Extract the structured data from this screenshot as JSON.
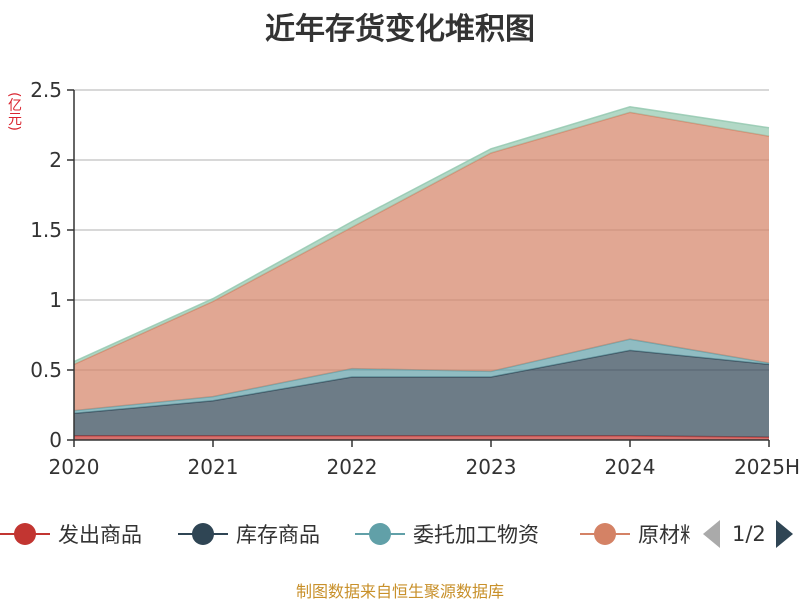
{
  "header": {
    "title": "近年存货变化堆积图",
    "unit": "(亿元)"
  },
  "chart_data": {
    "type": "area",
    "stacked": true,
    "title": "近年存货变化堆积图",
    "ylabel": "(亿元)",
    "xlabel": "",
    "categories": [
      "2020",
      "2021",
      "2022",
      "2023",
      "2024",
      "2025H"
    ],
    "y_ticks": [
      "0",
      "0.5",
      "1",
      "1.5",
      "2",
      "2.5"
    ],
    "ylim": [
      0,
      2.5
    ],
    "grid": true,
    "legend_position": "bottom",
    "series": [
      {
        "name": "发出商品",
        "color": "#c23531",
        "values": [
          0.03,
          0.03,
          0.03,
          0.03,
          0.03,
          0.02
        ]
      },
      {
        "name": "库存商品",
        "color": "#2f4554",
        "values": [
          0.16,
          0.25,
          0.42,
          0.42,
          0.61,
          0.52
        ]
      },
      {
        "name": "委托加工物资",
        "color": "#61a0a8",
        "values": [
          0.02,
          0.03,
          0.06,
          0.04,
          0.08,
          0.01
        ]
      },
      {
        "name": "原材料",
        "color": "#d48265",
        "values": [
          0.33,
          0.68,
          1.01,
          1.56,
          1.62,
          1.62
        ]
      },
      {
        "name": "",
        "color": "#91c7ae",
        "values": [
          0.02,
          0.02,
          0.04,
          0.03,
          0.04,
          0.06
        ]
      }
    ]
  },
  "legend": {
    "items": [
      {
        "label": "发出商品",
        "color": "#c23531"
      },
      {
        "label": "库存商品",
        "color": "#2f4554"
      },
      {
        "label": "委托加工物资",
        "color": "#61a0a8"
      },
      {
        "label": "原材料",
        "color": "#d48265"
      }
    ],
    "page": "1/2"
  },
  "footer": {
    "source": "制图数据来自恒生聚源数据库"
  }
}
